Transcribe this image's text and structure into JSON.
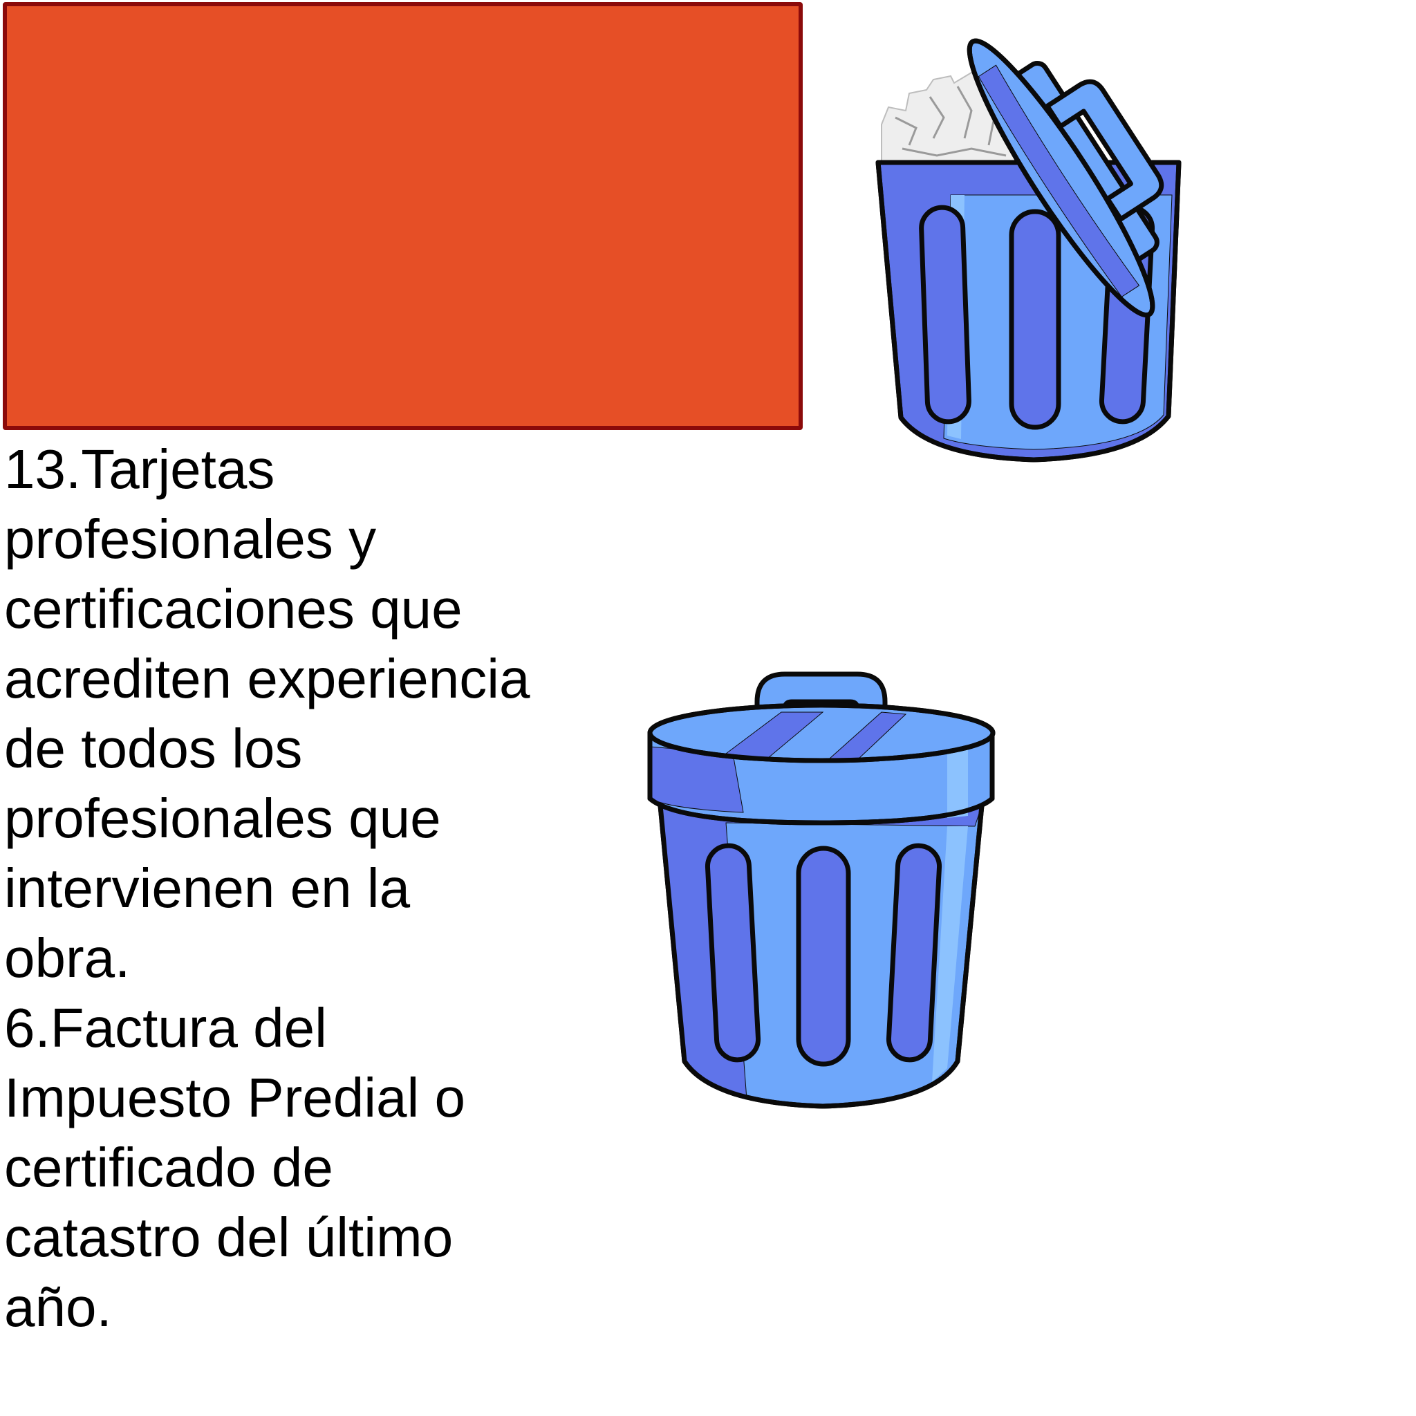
{
  "colors": {
    "box_fill": "#e64f26",
    "box_border": "#8b0a0a",
    "bin_light": "#6ea7fb",
    "bin_dark": "#5f74ea",
    "bin_highlight": "#8cc2fe",
    "outline": "#0a0a0a",
    "paper": "#eeeeee"
  },
  "icons": {
    "open_bin": "trash-can-open-icon",
    "closed_bin": "trash-can-closed-icon"
  },
  "text": {
    "item_13": "13.Tarjetas\nprofesionales y\ncertificaciones que\nacrediten experiencia\nde todos los\nprofesionales que\nintervienen en la\nobra.",
    "item_6": "6.Factura del\nImpuesto Predial o\ncertificado de\ncatastro del último\naño."
  }
}
